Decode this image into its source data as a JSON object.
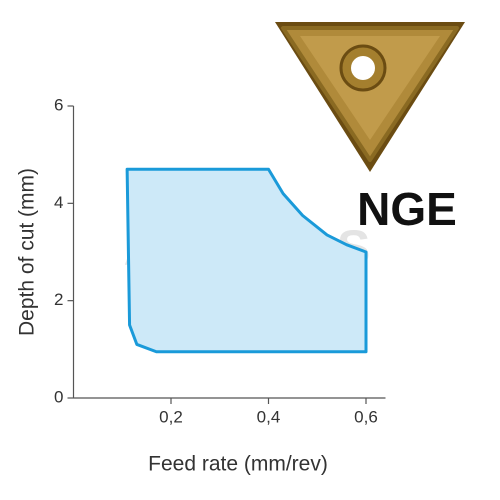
{
  "chart_data": {
    "type": "region",
    "x_label": "Feed rate (mm/rev)",
    "y_label": "Depth of cut (mm)",
    "annotation": "NGE",
    "watermark": "ANODAS",
    "x": [
      0.11,
      0.4,
      0.43,
      0.47,
      0.52,
      0.56,
      0.6,
      0.6,
      0.17,
      0.13,
      0.115,
      0.11
    ],
    "y": [
      4.7,
      4.7,
      4.2,
      3.75,
      3.35,
      3.15,
      3.0,
      0.95,
      0.95,
      1.1,
      1.5,
      4.7
    ],
    "fill": "#cde9f8",
    "color": "#1a9ad9",
    "xlim": [
      0,
      0.64
    ],
    "ylim": [
      0,
      6
    ],
    "xticks": [
      {
        "value": 0.2,
        "label": "0,2"
      },
      {
        "value": 0.4,
        "label": "0,4"
      },
      {
        "value": 0.6,
        "label": "0,6"
      }
    ],
    "yticks": [
      0,
      2,
      4,
      6
    ]
  }
}
